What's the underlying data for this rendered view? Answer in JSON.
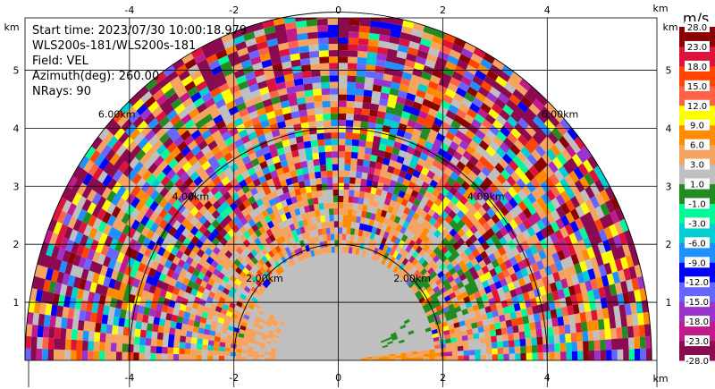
{
  "info": {
    "start_time": "Start time: 2023/07/30 10:00:18.979",
    "instrument": "WLS200s-181/WLS200s-181",
    "field": "Field: VEL",
    "azimuth": "Azimuth(deg): 260.00",
    "nrays": "NRays: 90"
  },
  "chart_data": {
    "type": "heatmap",
    "description_kind": "radar RHI velocity scan",
    "x_axis": {
      "unit_label": "km",
      "range": [
        -6.0,
        6.1
      ],
      "ticks": [
        -4,
        -2,
        0,
        2,
        4
      ]
    },
    "y_axis": {
      "unit_label": "km",
      "range": [
        0,
        5.9
      ],
      "ticks": [
        1,
        2,
        3,
        4,
        5
      ]
    },
    "range_rings": [
      {
        "radius_km": 2,
        "label": "2.00km"
      },
      {
        "radius_km": 4,
        "label": "4.00km"
      },
      {
        "radius_km": 6,
        "label": "6.00km"
      }
    ],
    "max_range_km": 6.0,
    "grid": true,
    "colorbar": {
      "unit": "m/s",
      "boundaries": [
        -28.0,
        -23.0,
        -18.0,
        -15.0,
        -12.0,
        -9.0,
        -6.0,
        -3.0,
        -1.0,
        1.0,
        3.0,
        6.0,
        9.0,
        12.0,
        15.0,
        18.0,
        23.0,
        28.0
      ],
      "labels": [
        "-28.0",
        "-23.0",
        "-18.0",
        "-15.0",
        "-12.0",
        "-9.0",
        "-6.0",
        "-3.0",
        "-1.0",
        "1.0",
        "3.0",
        "6.0",
        "9.0",
        "12.0",
        "15.0",
        "18.0",
        "23.0",
        "28.0"
      ],
      "colors": [
        "#8b0a50",
        "#c01a8b",
        "#9933cc",
        "#6666ff",
        "#0000ff",
        "#1e90ff",
        "#00ced1",
        "#00fa9a",
        "#228b22",
        "#bfbfbf",
        "#f4a460",
        "#ff8c00",
        "#ffff00",
        "#ff6347",
        "#ff4500",
        "#dc143c",
        "#8b0000"
      ]
    }
  }
}
